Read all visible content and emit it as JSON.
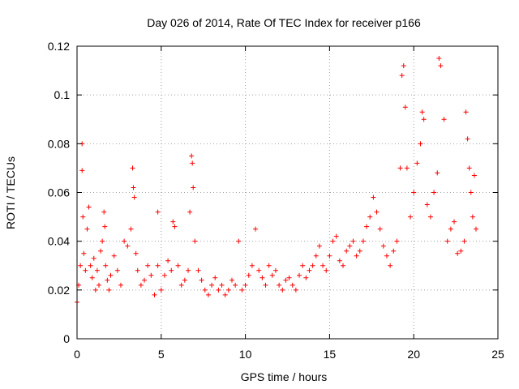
{
  "chart_data": {
    "type": "scatter",
    "title": "Day 026 of 2014, Rate Of TEC Index for receiver p166",
    "xlabel": "GPS time / hours",
    "ylabel": "ROTI / TECUs",
    "xlim": [
      0,
      25
    ],
    "ylim": [
      0,
      0.12
    ],
    "x_ticks": [
      "0",
      "5",
      "10",
      "15",
      "20",
      "25"
    ],
    "y_ticks": [
      "0",
      "0.02",
      "0.04",
      "0.06",
      "0.08",
      "0.1",
      "0.12"
    ],
    "x_tick_values": [
      0,
      5,
      10,
      15,
      20,
      25
    ],
    "y_tick_values": [
      0,
      0.02,
      0.04,
      0.06,
      0.08,
      0.1,
      0.12
    ],
    "grid": true,
    "marker": "+",
    "color": "#ff0000",
    "series": [
      {
        "name": "ROTI",
        "x": [
          0.0,
          0.1,
          0.2,
          0.3,
          0.3,
          0.35,
          0.4,
          0.5,
          0.6,
          0.7,
          0.8,
          0.9,
          1.0,
          1.1,
          1.2,
          1.3,
          1.4,
          1.5,
          1.6,
          1.65,
          1.7,
          1.8,
          1.9,
          2.0,
          2.2,
          2.4,
          2.6,
          2.8,
          3.0,
          3.2,
          3.3,
          3.35,
          3.4,
          3.5,
          3.6,
          3.8,
          4.0,
          4.2,
          4.4,
          4.6,
          4.8,
          4.8,
          5.0,
          5.2,
          5.4,
          5.6,
          5.7,
          5.8,
          6.0,
          6.2,
          6.4,
          6.6,
          6.7,
          6.8,
          6.85,
          6.9,
          7.0,
          7.2,
          7.4,
          7.6,
          7.8,
          8.0,
          8.2,
          8.4,
          8.6,
          8.8,
          9.0,
          9.2,
          9.4,
          9.6,
          9.8,
          10.0,
          10.2,
          10.4,
          10.6,
          10.8,
          11.0,
          11.2,
          11.4,
          11.6,
          11.8,
          12.0,
          12.2,
          12.4,
          12.6,
          12.8,
          13.0,
          13.2,
          13.4,
          13.6,
          13.8,
          14.0,
          14.2,
          14.4,
          14.6,
          14.8,
          15.0,
          15.2,
          15.4,
          15.6,
          15.8,
          16.0,
          16.2,
          16.4,
          16.6,
          16.8,
          17.0,
          17.2,
          17.4,
          17.6,
          17.8,
          18.0,
          18.2,
          18.4,
          18.6,
          18.8,
          19.0,
          19.2,
          19.3,
          19.4,
          19.5,
          19.6,
          19.8,
          20.0,
          20.2,
          20.4,
          20.5,
          20.6,
          20.8,
          21.0,
          21.2,
          21.4,
          21.5,
          21.6,
          21.8,
          22.0,
          22.2,
          22.4,
          22.6,
          22.8,
          23.0,
          23.1,
          23.2,
          23.3,
          23.4,
          23.5,
          23.6,
          23.7
        ],
        "y": [
          0.015,
          0.022,
          0.03,
          0.08,
          0.069,
          0.05,
          0.035,
          0.028,
          0.045,
          0.054,
          0.03,
          0.025,
          0.033,
          0.02,
          0.028,
          0.022,
          0.036,
          0.04,
          0.052,
          0.046,
          0.03,
          0.024,
          0.02,
          0.026,
          0.034,
          0.028,
          0.022,
          0.04,
          0.038,
          0.045,
          0.07,
          0.062,
          0.058,
          0.035,
          0.028,
          0.022,
          0.024,
          0.03,
          0.026,
          0.018,
          0.052,
          0.03,
          0.02,
          0.026,
          0.032,
          0.028,
          0.048,
          0.046,
          0.03,
          0.022,
          0.024,
          0.028,
          0.052,
          0.075,
          0.072,
          0.062,
          0.04,
          0.028,
          0.024,
          0.02,
          0.018,
          0.022,
          0.025,
          0.02,
          0.022,
          0.018,
          0.02,
          0.024,
          0.022,
          0.04,
          0.02,
          0.022,
          0.026,
          0.03,
          0.045,
          0.028,
          0.025,
          0.022,
          0.03,
          0.026,
          0.028,
          0.022,
          0.02,
          0.024,
          0.025,
          0.022,
          0.02,
          0.026,
          0.03,
          0.025,
          0.028,
          0.03,
          0.034,
          0.038,
          0.03,
          0.028,
          0.034,
          0.04,
          0.042,
          0.032,
          0.03,
          0.036,
          0.038,
          0.04,
          0.034,
          0.036,
          0.04,
          0.046,
          0.05,
          0.058,
          0.052,
          0.045,
          0.038,
          0.034,
          0.03,
          0.036,
          0.04,
          0.07,
          0.108,
          0.112,
          0.095,
          0.07,
          0.05,
          0.06,
          0.072,
          0.08,
          0.093,
          0.09,
          0.055,
          0.05,
          0.06,
          0.068,
          0.115,
          0.112,
          0.09,
          0.04,
          0.045,
          0.048,
          0.035,
          0.036,
          0.04,
          0.093,
          0.082,
          0.07,
          0.06,
          0.05,
          0.067,
          0.045
        ]
      }
    ]
  }
}
